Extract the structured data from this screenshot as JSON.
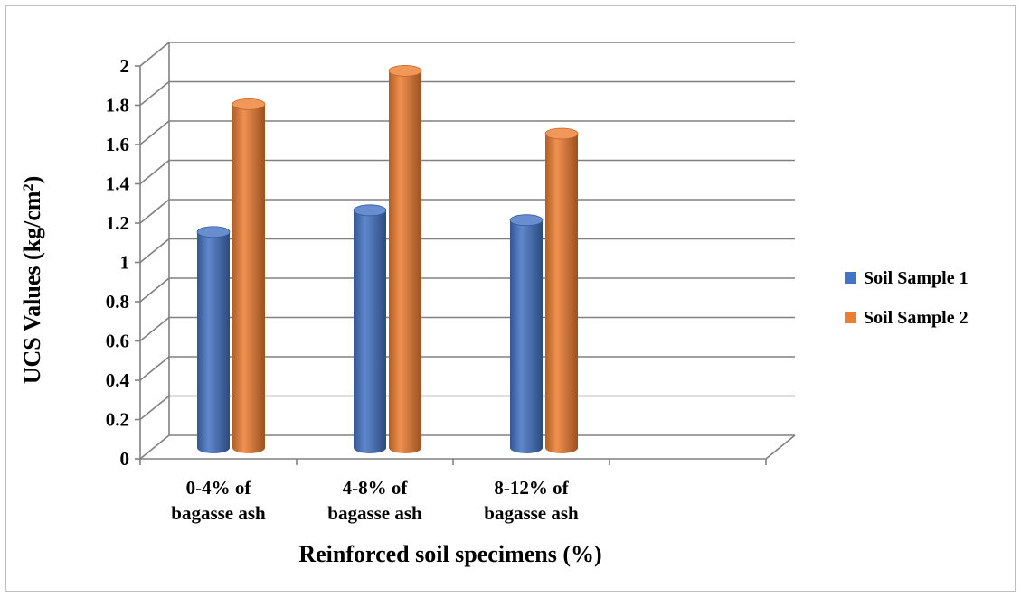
{
  "chart_data": {
    "type": "bar",
    "title": "",
    "xlabel": "Reinforced soil specimens (%)",
    "ylabel_main": "UCS Values (kg/cm",
    "ylabel_sup": "2",
    "ylabel_tail": ")",
    "categories": [
      [
        "0-4% of",
        "bagasse ash"
      ],
      [
        "4-8% of",
        "bagasse ash"
      ],
      [
        "8-12% of",
        "bagasse ash"
      ],
      [
        "",
        ""
      ]
    ],
    "series": [
      {
        "name": "Soil Sample 1",
        "color": "#4472C4",
        "values": [
          1.1,
          1.21,
          1.16,
          null
        ]
      },
      {
        "name": "Soil Sample 2",
        "color": "#ED7D31",
        "values": [
          1.75,
          1.92,
          1.6,
          null
        ]
      }
    ],
    "ylim": [
      0,
      2
    ],
    "yticks": [
      "0",
      "0.2",
      "0.4",
      "0.6",
      "0.8",
      "1",
      "1.2",
      "1.4",
      "1.6",
      "1.8",
      "2"
    ],
    "grid": true,
    "style": "3d-cylinder",
    "legend_position": "right"
  }
}
